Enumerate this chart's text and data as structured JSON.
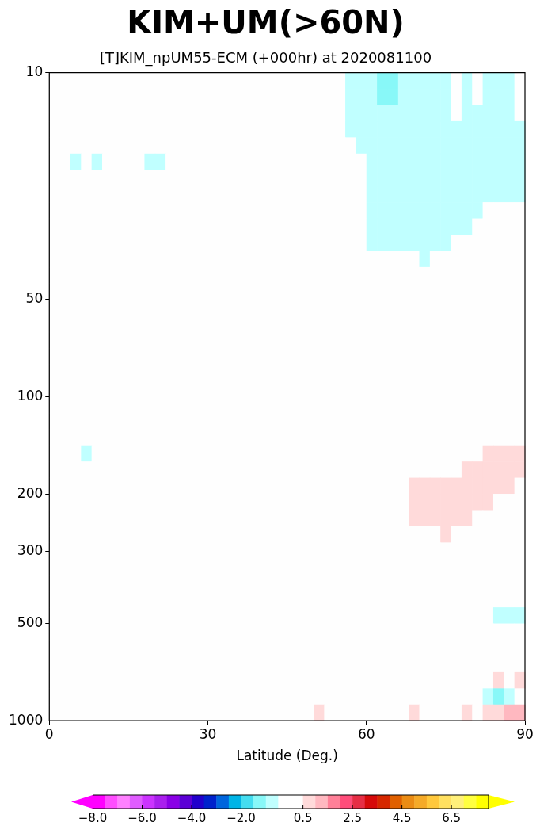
{
  "chart_data": {
    "type": "heatmap",
    "title": "KIM+UM(>60N)",
    "subtitle": "[T]KIM_npUM55-ECM (+000hr) at 2020081100",
    "xlabel": "Latitude (Deg.)",
    "xlim": [
      0,
      90
    ],
    "xticks": [
      0,
      30,
      60,
      90
    ],
    "ylim": [
      1000,
      10
    ],
    "yticks": [
      10,
      50,
      100,
      200,
      300,
      500,
      1000
    ],
    "log": "y",
    "grid": false,
    "clim": [
      -8,
      8
    ],
    "cticks": [
      {
        "value": -8,
        "label": "−8.0"
      },
      {
        "value": -7.5,
        "label": null
      },
      {
        "value": -7,
        "label": null
      },
      {
        "value": -6.5,
        "label": null
      },
      {
        "value": -6,
        "label": "−6.0"
      },
      {
        "value": -5.5,
        "label": null
      },
      {
        "value": -5,
        "label": null
      },
      {
        "value": -4.5,
        "label": null
      },
      {
        "value": -4,
        "label": "−4.0"
      },
      {
        "value": -3.5,
        "label": null
      },
      {
        "value": -3,
        "label": null
      },
      {
        "value": -2.5,
        "label": null
      },
      {
        "value": -2,
        "label": "−2.0"
      },
      {
        "value": -1.5,
        "label": null
      },
      {
        "value": -1,
        "label": null
      },
      {
        "value": -0.5,
        "label": null
      },
      {
        "value": 0.5,
        "label": "0.5"
      },
      {
        "value": 1,
        "label": null
      },
      {
        "value": 1.5,
        "label": null
      },
      {
        "value": 2,
        "label": null
      },
      {
        "value": 2.5,
        "label": "2.5"
      },
      {
        "value": 3,
        "label": null
      },
      {
        "value": 3.5,
        "label": null
      },
      {
        "value": 4,
        "label": null
      },
      {
        "value": 4.5,
        "label": "4.5"
      },
      {
        "value": 5,
        "label": null
      },
      {
        "value": 5.5,
        "label": null
      },
      {
        "value": 6,
        "label": null
      },
      {
        "value": 6.5,
        "label": "6.5"
      },
      {
        "value": 7,
        "label": null
      },
      {
        "value": 7.5,
        "label": null
      },
      {
        "value": 8,
        "label": null
      }
    ],
    "colors": [
      "#ff00ff",
      "#ff4dff",
      "#ff80ff",
      "#e05cff",
      "#cc33ff",
      "#aa1fee",
      "#8a00e6",
      "#5c00d6",
      "#2200cc",
      "#0022cc",
      "#0066dd",
      "#00b4e6",
      "#44ddf0",
      "#88f8f8",
      "#c0ffff",
      "#fefefe",
      "#ffdada",
      "#ffb8c0",
      "#ff8098",
      "#ff4d7a",
      "#e62e45",
      "#d60a0a",
      "#d62800",
      "#e06000",
      "#eb8c14",
      "#f5aa28",
      "#ffc83c",
      "#ffe060",
      "#fff07a",
      "#ffff40",
      "#ffff00"
    ],
    "cells": [
      [
        0,
        0,
        0,
        0,
        0,
        0,
        0,
        0,
        0,
        0,
        0,
        0,
        0,
        0,
        0,
        0,
        0,
        0,
        0,
        0,
        0,
        0,
        0,
        0,
        0,
        0,
        0,
        0,
        -0.75,
        -0.75,
        -0.75,
        -1.25,
        -1.25,
        -0.75,
        -0.75,
        -0.75,
        -0.75,
        -0.75,
        0,
        -0.75,
        0,
        -0.75,
        -0.75,
        -0.75,
        0
      ],
      [
        0,
        0,
        0,
        0,
        0,
        0,
        0,
        0,
        0,
        0,
        0,
        0,
        0,
        0,
        0,
        0,
        0,
        0,
        0,
        0,
        0,
        0,
        0,
        0,
        0,
        0,
        0,
        0,
        -0.75,
        -0.75,
        -0.75,
        -1.25,
        -1.25,
        -0.75,
        -0.75,
        -0.75,
        -0.75,
        -0.75,
        0,
        -0.75,
        0,
        -0.75,
        -0.75,
        -0.75,
        0
      ],
      [
        0,
        0,
        0,
        0,
        0,
        0,
        0,
        0,
        0,
        0,
        0,
        0,
        0,
        0,
        0,
        0,
        0,
        0,
        0,
        0,
        0,
        0,
        0,
        0,
        0,
        0,
        0,
        0,
        -0.75,
        -0.75,
        -0.75,
        -0.75,
        -0.75,
        -0.75,
        -0.75,
        -0.75,
        -0.75,
        -0.75,
        0,
        -0.75,
        -0.75,
        -0.75,
        -0.75,
        -0.75,
        0
      ],
      [
        0,
        0,
        0,
        0,
        0,
        0,
        0,
        0,
        0,
        0,
        0,
        0,
        0,
        0,
        0,
        0,
        0,
        0,
        0,
        0,
        0,
        0,
        0,
        0,
        0,
        0,
        0,
        0,
        -0.75,
        -0.75,
        -0.75,
        -0.75,
        -0.75,
        -0.75,
        -0.75,
        -0.75,
        -0.75,
        -0.75,
        -0.75,
        -0.75,
        -0.75,
        -0.75,
        -0.75,
        -0.75,
        -0.75
      ],
      [
        0,
        0,
        0,
        0,
        0,
        0,
        0,
        0,
        0,
        0,
        0,
        0,
        0,
        0,
        0,
        0,
        0,
        0,
        0,
        0,
        0,
        0,
        0,
        0,
        0,
        0,
        0,
        0,
        0,
        -0.75,
        -0.75,
        -0.75,
        -0.75,
        -0.75,
        -0.75,
        -0.75,
        -0.75,
        -0.75,
        -0.75,
        -0.75,
        -0.75,
        -0.75,
        -0.75,
        -0.75,
        -0.75
      ],
      [
        0,
        0,
        -0.75,
        0,
        -0.75,
        0,
        0,
        0,
        0,
        -0.75,
        -0.75,
        0,
        0,
        0,
        0,
        0,
        0,
        0,
        0,
        0,
        0,
        0,
        0,
        0,
        0,
        0,
        0,
        0,
        0,
        0,
        -0.75,
        -0.75,
        -0.75,
        -0.75,
        -0.75,
        -0.75,
        -0.75,
        -0.75,
        -0.75,
        -0.75,
        -0.75,
        -0.75,
        -0.75,
        -0.75,
        -0.75
      ],
      [
        0,
        0,
        0,
        0,
        0,
        0,
        0,
        0,
        0,
        0,
        0,
        0,
        0,
        0,
        0,
        0,
        0,
        0,
        0,
        0,
        0,
        0,
        0,
        0,
        0,
        0,
        0,
        0,
        0,
        0,
        -0.75,
        -0.75,
        -0.75,
        -0.75,
        -0.75,
        -0.75,
        -0.75,
        -0.75,
        -0.75,
        -0.75,
        -0.75,
        -0.75,
        -0.75,
        -0.75,
        -0.75
      ],
      [
        0,
        0,
        0,
        0,
        0,
        0,
        0,
        0,
        0,
        0,
        0,
        0,
        0,
        0,
        0,
        0,
        0,
        0,
        0,
        0,
        0,
        0,
        0,
        0,
        0,
        0,
        0,
        0,
        0,
        0,
        -0.75,
        -0.75,
        -0.75,
        -0.75,
        -0.75,
        -0.75,
        -0.75,
        -0.75,
        -0.75,
        -0.75,
        -0.75,
        -0.75,
        -0.75,
        -0.75,
        -0.75
      ],
      [
        0,
        0,
        0,
        0,
        0,
        0,
        0,
        0,
        0,
        0,
        0,
        0,
        0,
        0,
        0,
        0,
        0,
        0,
        0,
        0,
        0,
        0,
        0,
        0,
        0,
        0,
        0,
        0,
        0,
        0,
        -0.75,
        -0.75,
        -0.75,
        -0.75,
        -0.75,
        -0.75,
        -0.75,
        -0.75,
        -0.75,
        -0.75,
        -0.75,
        0,
        0,
        0,
        0
      ],
      [
        0,
        0,
        0,
        0,
        0,
        0,
        0,
        0,
        0,
        0,
        0,
        0,
        0,
        0,
        0,
        0,
        0,
        0,
        0,
        0,
        0,
        0,
        0,
        0,
        0,
        0,
        0,
        0,
        0,
        0,
        -0.75,
        -0.75,
        -0.75,
        -0.75,
        -0.75,
        -0.75,
        -0.75,
        -0.75,
        -0.75,
        -0.75,
        0,
        0,
        0,
        0,
        0
      ],
      [
        0,
        0,
        0,
        0,
        0,
        0,
        0,
        0,
        0,
        0,
        0,
        0,
        0,
        0,
        0,
        0,
        0,
        0,
        0,
        0,
        0,
        0,
        0,
        0,
        0,
        0,
        0,
        0,
        0,
        0,
        -0.75,
        -0.75,
        -0.75,
        -0.75,
        -0.75,
        -0.75,
        -0.75,
        -0.75,
        0,
        0,
        0,
        0,
        0,
        0,
        0
      ],
      [
        0,
        0,
        0,
        0,
        0,
        0,
        0,
        0,
        0,
        0,
        0,
        0,
        0,
        0,
        0,
        0,
        0,
        0,
        0,
        0,
        0,
        0,
        0,
        0,
        0,
        0,
        0,
        0,
        0,
        0,
        0,
        0,
        0,
        0,
        0,
        -0.75,
        0,
        0,
        0,
        0,
        0,
        0,
        0,
        0,
        0
      ],
      [
        0,
        0,
        0,
        0,
        0,
        0,
        0,
        0,
        0,
        0,
        0,
        0,
        0,
        0,
        0,
        0,
        0,
        0,
        0,
        0,
        0,
        0,
        0,
        0,
        0,
        0,
        0,
        0,
        0,
        0,
        0,
        0,
        0,
        0,
        0,
        0,
        0,
        0,
        0,
        0,
        0,
        0,
        0,
        0,
        0
      ],
      [
        0,
        0,
        0,
        0,
        0,
        0,
        0,
        0,
        0,
        0,
        0,
        0,
        0,
        0,
        0,
        0,
        0,
        0,
        0,
        0,
        0,
        0,
        0,
        0,
        0,
        0,
        0,
        0,
        0,
        0,
        0,
        0,
        0,
        0,
        0,
        0,
        0,
        0,
        0,
        0,
        0,
        0,
        0,
        0,
        0
      ],
      [
        0,
        0,
        0,
        0,
        0,
        0,
        0,
        0,
        0,
        0,
        0,
        0,
        0,
        0,
        0,
        0,
        0,
        0,
        0,
        0,
        0,
        0,
        0,
        0,
        0,
        0,
        0,
        0,
        0,
        0,
        0,
        0,
        0,
        0,
        0,
        0,
        0,
        0,
        0,
        0,
        0,
        0,
        0,
        0,
        0
      ],
      [
        0,
        0,
        0,
        0,
        0,
        0,
        0,
        0,
        0,
        0,
        0,
        0,
        0,
        0,
        0,
        0,
        0,
        0,
        0,
        0,
        0,
        0,
        0,
        0,
        0,
        0,
        0,
        0,
        0,
        0,
        0,
        0,
        0,
        0,
        0,
        0,
        0,
        0,
        0,
        0,
        0,
        0,
        0,
        0,
        0
      ],
      [
        0,
        0,
        0,
        0,
        0,
        0,
        0,
        0,
        0,
        0,
        0,
        0,
        0,
        0,
        0,
        0,
        0,
        0,
        0,
        0,
        0,
        0,
        0,
        0,
        0,
        0,
        0,
        0,
        0,
        0,
        0,
        0,
        0,
        0,
        0,
        0,
        0,
        0,
        0,
        0,
        0,
        0,
        0,
        0,
        0
      ],
      [
        0,
        0,
        0,
        0,
        0,
        0,
        0,
        0,
        0,
        0,
        0,
        0,
        0,
        0,
        0,
        0,
        0,
        0,
        0,
        0,
        0,
        0,
        0,
        0,
        0,
        0,
        0,
        0,
        0,
        0,
        0,
        0,
        0,
        0,
        0,
        0,
        0,
        0,
        0,
        0,
        0,
        0,
        0,
        0,
        0
      ],
      [
        0,
        0,
        0,
        0,
        0,
        0,
        0,
        0,
        0,
        0,
        0,
        0,
        0,
        0,
        0,
        0,
        0,
        0,
        0,
        0,
        0,
        0,
        0,
        0,
        0,
        0,
        0,
        0,
        0,
        0,
        0,
        0,
        0,
        0,
        0,
        0,
        0,
        0,
        0,
        0,
        0,
        0,
        0,
        0,
        0
      ],
      [
        0,
        0,
        0,
        0,
        0,
        0,
        0,
        0,
        0,
        0,
        0,
        0,
        0,
        0,
        0,
        0,
        0,
        0,
        0,
        0,
        0,
        0,
        0,
        0,
        0,
        0,
        0,
        0,
        0,
        0,
        0,
        0,
        0,
        0,
        0,
        0,
        0,
        0,
        0,
        0,
        0,
        0,
        0,
        0,
        0
      ],
      [
        0,
        0,
        0,
        0,
        0,
        0,
        0,
        0,
        0,
        0,
        0,
        0,
        0,
        0,
        0,
        0,
        0,
        0,
        0,
        0,
        0,
        0,
        0,
        0,
        0,
        0,
        0,
        0,
        0,
        0,
        0,
        0,
        0,
        0,
        0,
        0,
        0,
        0,
        0,
        0,
        0,
        0,
        0,
        0,
        0
      ],
      [
        0,
        0,
        0,
        0,
        0,
        0,
        0,
        0,
        0,
        0,
        0,
        0,
        0,
        0,
        0,
        0,
        0,
        0,
        0,
        0,
        0,
        0,
        0,
        0,
        0,
        0,
        0,
        0,
        0,
        0,
        0,
        0,
        0,
        0,
        0,
        0,
        0,
        0,
        0,
        0,
        0,
        0,
        0,
        0,
        0
      ],
      [
        0,
        0,
        0,
        0,
        0,
        0,
        0,
        0,
        0,
        0,
        0,
        0,
        0,
        0,
        0,
        0,
        0,
        0,
        0,
        0,
        0,
        0,
        0,
        0,
        0,
        0,
        0,
        0,
        0,
        0,
        0,
        0,
        0,
        0,
        0,
        0,
        0,
        0,
        0,
        0,
        0,
        0,
        0,
        0,
        0
      ],
      [
        0,
        0,
        0,
        -0.75,
        0,
        0,
        0,
        0,
        0,
        0,
        0,
        0,
        0,
        0,
        0,
        0,
        0,
        0,
        0,
        0,
        0,
        0,
        0,
        0,
        0,
        0,
        0,
        0,
        0,
        0,
        0,
        0,
        0,
        0,
        0,
        0,
        0,
        0,
        0,
        0,
        0,
        0.75,
        0.75,
        0.75,
        0.75
      ],
      [
        0,
        0,
        0,
        0,
        0,
        0,
        0,
        0,
        0,
        0,
        0,
        0,
        0,
        0,
        0,
        0,
        0,
        0,
        0,
        0,
        0,
        0,
        0,
        0,
        0,
        0,
        0,
        0,
        0,
        0,
        0,
        0,
        0,
        0,
        0,
        0,
        0,
        0,
        0,
        0.75,
        0.75,
        0.75,
        0.75,
        0.75,
        0.75
      ],
      [
        0,
        0,
        0,
        0,
        0,
        0,
        0,
        0,
        0,
        0,
        0,
        0,
        0,
        0,
        0,
        0,
        0,
        0,
        0,
        0,
        0,
        0,
        0,
        0,
        0,
        0,
        0,
        0,
        0,
        0,
        0,
        0,
        0,
        0,
        0.75,
        0.75,
        0.75,
        0.75,
        0.75,
        0.75,
        0.75,
        0.75,
        0.75,
        0.75,
        0
      ],
      [
        0,
        0,
        0,
        0,
        0,
        0,
        0,
        0,
        0,
        0,
        0,
        0,
        0,
        0,
        0,
        0,
        0,
        0,
        0,
        0,
        0,
        0,
        0,
        0,
        0,
        0,
        0,
        0,
        0,
        0,
        0,
        0,
        0,
        0,
        0.75,
        0.75,
        0.75,
        0.75,
        0.75,
        0.75,
        0.75,
        0.75,
        0,
        0,
        0
      ],
      [
        0,
        0,
        0,
        0,
        0,
        0,
        0,
        0,
        0,
        0,
        0,
        0,
        0,
        0,
        0,
        0,
        0,
        0,
        0,
        0,
        0,
        0,
        0,
        0,
        0,
        0,
        0,
        0,
        0,
        0,
        0,
        0,
        0,
        0,
        0.75,
        0.75,
        0.75,
        0.75,
        0.75,
        0.75,
        0,
        0,
        0,
        0,
        0
      ],
      [
        0,
        0,
        0,
        0,
        0,
        0,
        0,
        0,
        0,
        0,
        0,
        0,
        0,
        0,
        0,
        0,
        0,
        0,
        0,
        0,
        0,
        0,
        0,
        0,
        0,
        0,
        0,
        0,
        0,
        0,
        0,
        0,
        0,
        0,
        0,
        0,
        0,
        0.75,
        0,
        0,
        0,
        0,
        0,
        0,
        0
      ],
      [
        0,
        0,
        0,
        0,
        0,
        0,
        0,
        0,
        0,
        0,
        0,
        0,
        0,
        0,
        0,
        0,
        0,
        0,
        0,
        0,
        0,
        0,
        0,
        0,
        0,
        0,
        0,
        0,
        0,
        0,
        0,
        0,
        0,
        0,
        0,
        0,
        0,
        0,
        0,
        0,
        0,
        0,
        0,
        0,
        0
      ],
      [
        0,
        0,
        0,
        0,
        0,
        0,
        0,
        0,
        0,
        0,
        0,
        0,
        0,
        0,
        0,
        0,
        0,
        0,
        0,
        0,
        0,
        0,
        0,
        0,
        0,
        0,
        0,
        0,
        0,
        0,
        0,
        0,
        0,
        0,
        0,
        0,
        0,
        0,
        0,
        0,
        0,
        0,
        0,
        0,
        0
      ],
      [
        0,
        0,
        0,
        0,
        0,
        0,
        0,
        0,
        0,
        0,
        0,
        0,
        0,
        0,
        0,
        0,
        0,
        0,
        0,
        0,
        0,
        0,
        0,
        0,
        0,
        0,
        0,
        0,
        0,
        0,
        0,
        0,
        0,
        0,
        0,
        0,
        0,
        0,
        0,
        0,
        0,
        0,
        0,
        0,
        0
      ],
      [
        0,
        0,
        0,
        0,
        0,
        0,
        0,
        0,
        0,
        0,
        0,
        0,
        0,
        0,
        0,
        0,
        0,
        0,
        0,
        0,
        0,
        0,
        0,
        0,
        0,
        0,
        0,
        0,
        0,
        0,
        0,
        0,
        0,
        0,
        0,
        0,
        0,
        0,
        0,
        0,
        0,
        0,
        0,
        0,
        0
      ],
      [
        0,
        0,
        0,
        0,
        0,
        0,
        0,
        0,
        0,
        0,
        0,
        0,
        0,
        0,
        0,
        0,
        0,
        0,
        0,
        0,
        0,
        0,
        0,
        0,
        0,
        0,
        0,
        0,
        0,
        0,
        0,
        0,
        0,
        0,
        0,
        0,
        0,
        0,
        0,
        0,
        0,
        0,
        -0.75,
        -0.75,
        -0.75
      ],
      [
        0,
        0,
        0,
        0,
        0,
        0,
        0,
        0,
        0,
        0,
        0,
        0,
        0,
        0,
        0,
        0,
        0,
        0,
        0,
        0,
        0,
        0,
        0,
        0,
        0,
        0,
        0,
        0,
        0,
        0,
        0,
        0,
        0,
        0,
        0,
        0,
        0,
        0,
        0,
        0,
        0,
        0,
        0,
        0,
        0
      ],
      [
        0,
        0,
        0,
        0,
        0,
        0,
        0,
        0,
        0,
        0,
        0,
        0,
        0,
        0,
        0,
        0,
        0,
        0,
        0,
        0,
        0,
        0,
        0,
        0,
        0,
        0,
        0,
        0,
        0,
        0,
        0,
        0,
        0,
        0,
        0,
        0,
        0,
        0,
        0,
        0,
        0,
        0,
        0,
        0,
        0
      ],
      [
        0,
        0,
        0,
        0,
        0,
        0,
        0,
        0,
        0,
        0,
        0,
        0,
        0,
        0,
        0,
        0,
        0,
        0,
        0,
        0,
        0,
        0,
        0,
        0,
        0,
        0,
        0,
        0,
        0,
        0,
        0,
        0,
        0,
        0,
        0,
        0,
        0,
        0,
        0,
        0,
        0,
        0,
        0,
        0,
        0
      ],
      [
        0,
        0,
        0,
        0,
        0,
        0,
        0,
        0,
        0,
        0,
        0,
        0,
        0,
        0,
        0,
        0,
        0,
        0,
        0,
        0,
        0,
        0,
        0,
        0,
        0,
        0,
        0,
        0,
        0,
        0,
        0,
        0,
        0,
        0,
        0,
        0,
        0,
        0,
        0,
        0,
        0,
        0,
        0.75,
        0,
        0.75
      ],
      [
        0,
        0,
        0,
        0,
        0,
        0,
        0,
        0,
        0,
        0,
        0,
        0,
        0,
        0,
        0,
        0,
        0,
        0,
        0,
        0,
        0,
        0,
        0,
        0,
        0,
        0,
        0,
        0,
        0,
        0,
        0,
        0,
        0,
        0,
        0,
        0,
        0,
        0,
        0,
        0,
        0,
        -0.75,
        -1.25,
        -0.75,
        0
      ],
      [
        0,
        0,
        0,
        0,
        0,
        0,
        0,
        0,
        0,
        0,
        0,
        0,
        0,
        0,
        0,
        0,
        0,
        0,
        0,
        0,
        0,
        0,
        0,
        0,
        0,
        0.75,
        0,
        0,
        0,
        0,
        0,
        0,
        0,
        0,
        0.75,
        0,
        0,
        0,
        0,
        0.75,
        0,
        0.75,
        0.75,
        1.25,
        1.25
      ]
    ]
  }
}
